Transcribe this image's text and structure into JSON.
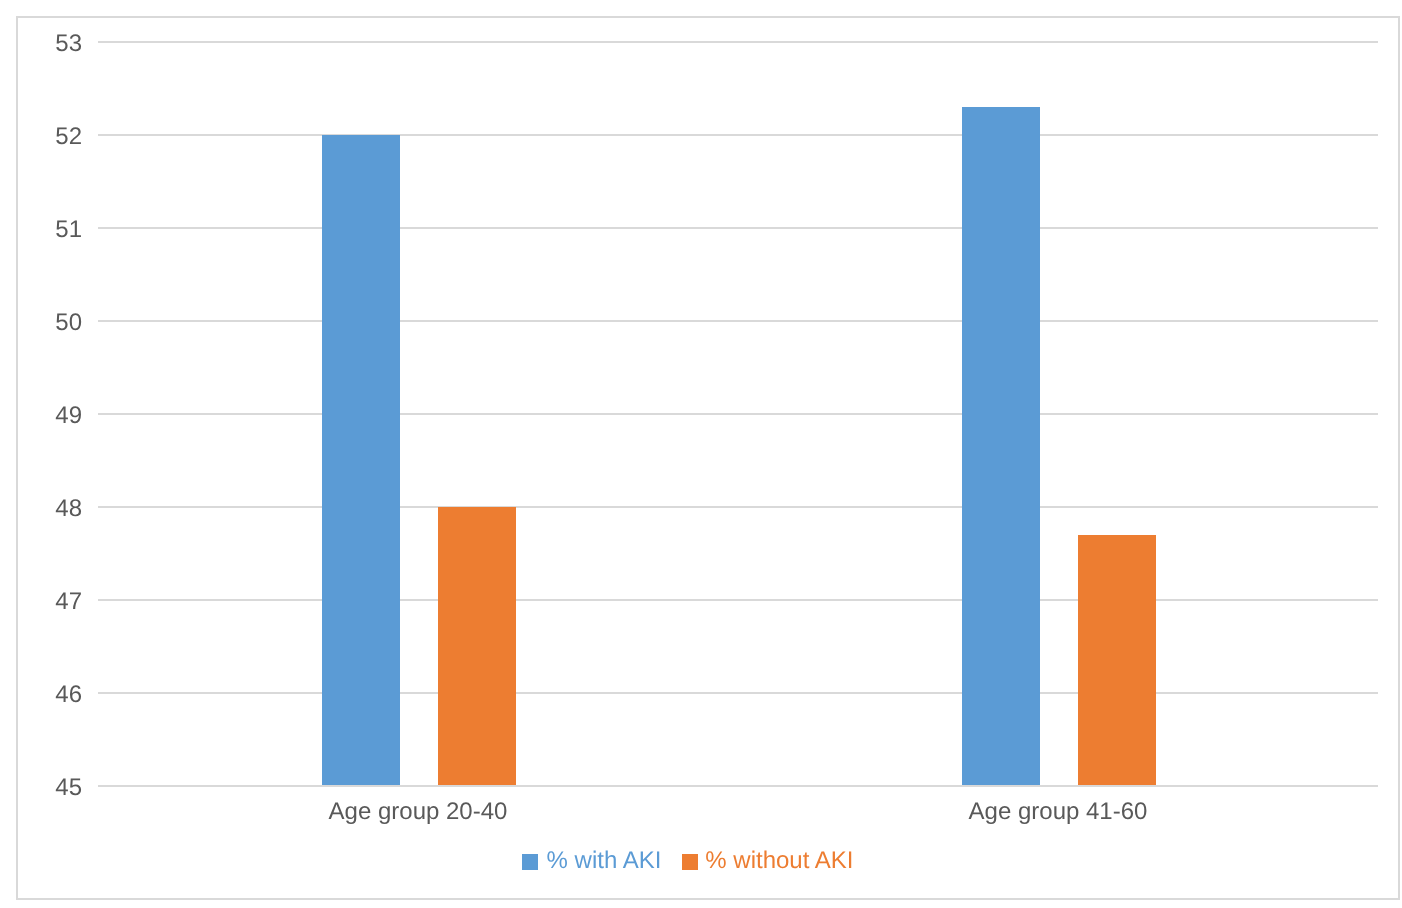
{
  "chart_data": {
    "type": "bar",
    "categories": [
      "Age group 20-40",
      "Age group 41-60"
    ],
    "series": [
      {
        "name": "% with AKI",
        "color": "#5b9bd5",
        "values": [
          52,
          52.3
        ]
      },
      {
        "name": "% without AKI",
        "color": "#ed7d31",
        "values": [
          48,
          47.7
        ]
      }
    ],
    "ylim": [
      45,
      53
    ],
    "yticks": [
      45,
      46,
      47,
      48,
      49,
      50,
      51,
      52,
      53
    ],
    "grid": "y",
    "legend": "bottom"
  }
}
